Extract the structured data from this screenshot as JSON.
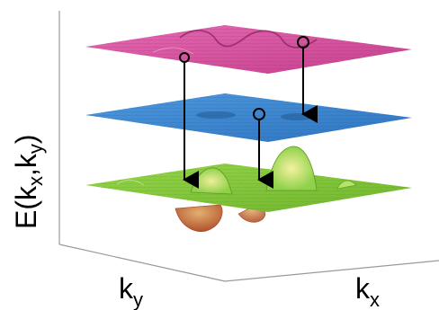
{
  "figure": {
    "axis_labels": {
      "energy": "E(k",
      "energy_sub1": "x",
      "energy_sep": ",k",
      "energy_sub2": "y",
      "energy_close": ")",
      "ky_main": "k",
      "ky_sub": "y",
      "kx_main": "k",
      "kx_sub": "x"
    },
    "colors": {
      "top_surface": "#d9489a",
      "middle_surface": "#3a87d4",
      "bottom_surface": "#7ec832",
      "box_lines": "#9a9a9a",
      "arrows": "#000000"
    },
    "layers": [
      "top-surface",
      "middle-surface",
      "bottom-surface"
    ]
  }
}
